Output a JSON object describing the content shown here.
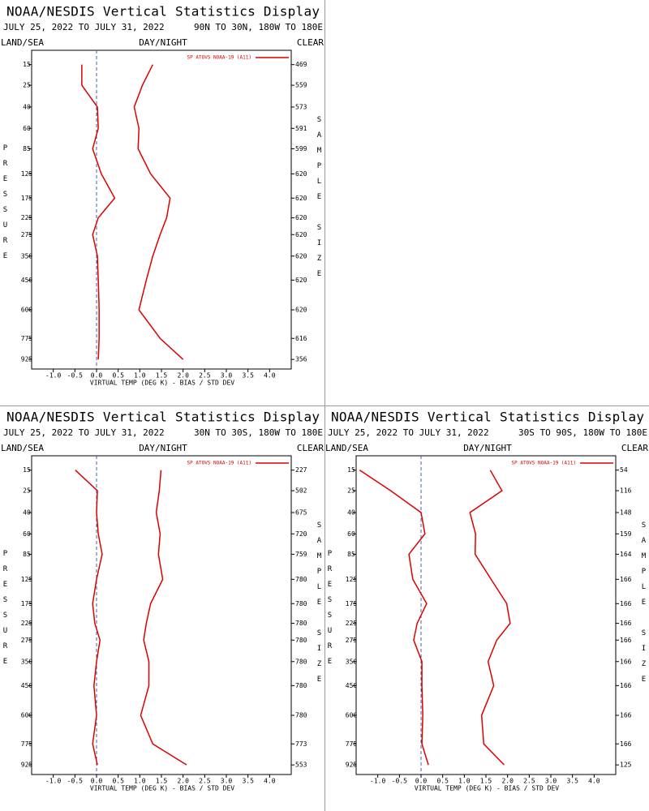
{
  "chart_data": [
    {
      "type": "line",
      "title": "NOAA/NESDIS Vertical Statistics Display",
      "subtitle": "JULY 25, 2022 TO JULY 31, 2022",
      "region": "90N TO 30N, 180W TO 180E",
      "left_label": "LAND/SEA",
      "center_label": "DAY/NIGHT",
      "right_label": "CLEAR",
      "ylabel": "PRESSURE",
      "y2label": "SAMPLE SIZE",
      "xlabel": "VIRTUAL TEMP (DEG K) - BIAS / STD DEV",
      "y": [
        15,
        25,
        40,
        60,
        85,
        125,
        175,
        225,
        275,
        350,
        450,
        600,
        775,
        925
      ],
      "sample_size": [
        469,
        559,
        573,
        591,
        599,
        620,
        620,
        620,
        620,
        620,
        620,
        620,
        616,
        356
      ],
      "series": [
        {
          "name": "SP ATOVS NOAA-19 (A11)",
          "color": "#dd0000",
          "values": [
            -0.34,
            -0.34,
            0.02,
            0.04,
            -0.09,
            0.11,
            0.42,
            0.04,
            -0.09,
            0.02,
            0.04,
            0.06,
            0.06,
            0.04
          ]
        },
        {
          "color": "#dd0000",
          "values": [
            1.3,
            1.06,
            0.87,
            0.98,
            0.96,
            1.25,
            1.7,
            1.62,
            1.47,
            1.3,
            1.15,
            0.98,
            1.47,
            2.0
          ]
        }
      ],
      "xlim": [
        -1.5,
        4.5
      ],
      "ylim": [
        10,
        1000
      ],
      "y_exponent": 0.286,
      "zero_line": true,
      "xticks": [
        {
          "value": -1,
          "label": "-1.0"
        },
        -0.5,
        {
          "value": 0,
          "label": "0.0"
        },
        0.5,
        {
          "value": 1,
          "label": "1.0"
        },
        1.5,
        {
          "value": 2,
          "label": "2.0"
        },
        2.5,
        {
          "value": 3,
          "label": "3.0"
        },
        3.5,
        {
          "value": 4,
          "label": "4.0"
        }
      ]
    },
    {
      "type": "line",
      "title": "NOAA/NESDIS Vertical Statistics Display",
      "subtitle": "JULY 25, 2022 TO JULY 31, 2022",
      "region": "30N TO 30S, 180W TO 180E",
      "left_label": "LAND/SEA",
      "center_label": "DAY/NIGHT",
      "right_label": "CLEAR",
      "ylabel": "PRESSURE",
      "y2label": "SAMPLE SIZE",
      "xlabel": "VIRTUAL TEMP (DEG K) - BIAS / STD DEV",
      "y": [
        15,
        25,
        40,
        60,
        85,
        125,
        175,
        225,
        275,
        350,
        450,
        600,
        775,
        925
      ],
      "sample_size": [
        227,
        502,
        675,
        720,
        759,
        780,
        780,
        780,
        780,
        780,
        780,
        780,
        773,
        553
      ],
      "series": [
        {
          "name": "SP ATOVS NOAA-19 (A11)",
          "color": "#dd0000",
          "values": [
            -0.49,
            0.02,
            0,
            0.04,
            0.13,
            0,
            -0.09,
            -0.04,
            0.08,
            0,
            -0.06,
            0,
            -0.09,
            0.02
          ]
        },
        {
          "color": "#dd0000",
          "values": [
            1.49,
            1.45,
            1.38,
            1.47,
            1.43,
            1.53,
            1.25,
            1.15,
            1.09,
            1.21,
            1.21,
            1.02,
            1.3,
            2.08
          ]
        }
      ],
      "xlim": [
        -1.5,
        4.5
      ],
      "ylim": [
        10,
        1000
      ],
      "y_exponent": 0.286,
      "zero_line": true,
      "xticks": [
        {
          "value": -1,
          "label": "-1.0"
        },
        -0.5,
        {
          "value": 0,
          "label": "0.0"
        },
        0.5,
        {
          "value": 1,
          "label": "1.0"
        },
        1.5,
        {
          "value": 2,
          "label": "2.0"
        },
        2.5,
        {
          "value": 3,
          "label": "3.0"
        },
        3.5,
        {
          "value": 4,
          "label": "4.0"
        }
      ]
    },
    {
      "type": "line",
      "title": "NOAA/NESDIS Vertical Statistics Display",
      "subtitle": "JULY 25, 2022 TO JULY 31, 2022",
      "region": "30S TO 90S, 180W TO 180E",
      "left_label": "LAND/SEA",
      "center_label": "DAY/NIGHT",
      "right_label": "CLEAR",
      "ylabel": "PRESSURE",
      "y2label": "SAMPLE SIZE",
      "xlabel": "VIRTUAL TEMP (DEG K) - BIAS / STD DEV",
      "y": [
        15,
        25,
        40,
        60,
        85,
        125,
        175,
        225,
        275,
        350,
        450,
        600,
        775,
        925
      ],
      "sample_size": [
        54,
        116,
        148,
        159,
        164,
        166,
        166,
        166,
        166,
        166,
        166,
        166,
        166,
        125
      ],
      "series": [
        {
          "name": "SP ATOVS NOAA-19 (A11)",
          "color": "#dd0000",
          "values": [
            -1.42,
            -0.7,
            0,
            0.09,
            -0.28,
            -0.19,
            0.13,
            -0.09,
            -0.17,
            0.02,
            0.02,
            0.04,
            0.02,
            0.17
          ]
        },
        {
          "color": "#dd0000",
          "values": [
            1.6,
            1.87,
            1.13,
            1.26,
            1.25,
            1.62,
            1.98,
            2.06,
            1.75,
            1.55,
            1.68,
            1.4,
            1.45,
            1.92
          ]
        }
      ],
      "xlim": [
        -1.5,
        4.5
      ],
      "ylim": [
        10,
        1000
      ],
      "y_exponent": 0.286,
      "zero_line": true,
      "xticks": [
        {
          "value": -1,
          "label": "-1.0"
        },
        -0.5,
        {
          "value": 0,
          "label": "0.0"
        },
        0.5,
        {
          "value": 1,
          "label": "1.0"
        },
        1.5,
        {
          "value": 2,
          "label": "2.0"
        },
        2.5,
        {
          "value": 3,
          "label": "3.0"
        },
        3.5,
        {
          "value": 4,
          "label": "4.0"
        }
      ]
    }
  ]
}
